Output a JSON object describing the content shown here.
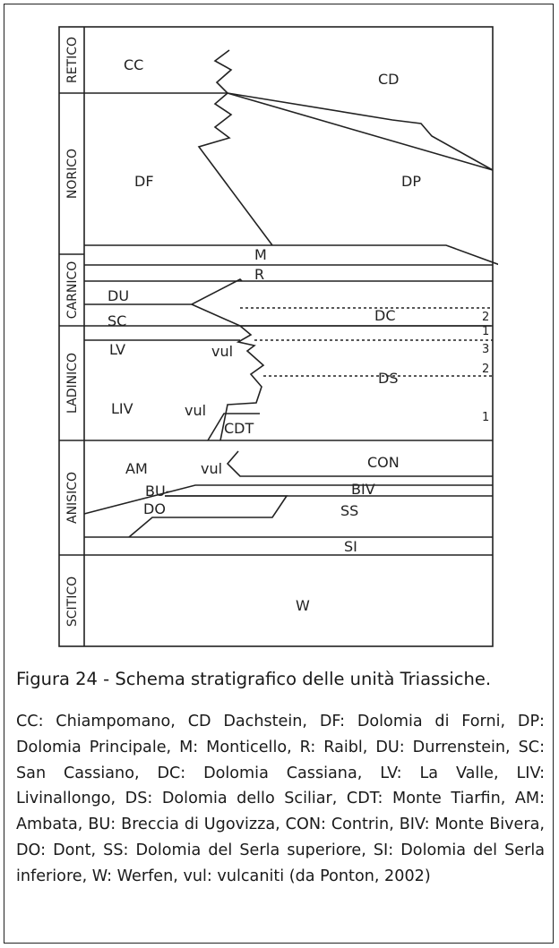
{
  "figure": {
    "stages": [
      "RETICO",
      "NORICO",
      "CARNICO",
      "LADINICO",
      "ANISICO",
      "SCITICO"
    ],
    "units": {
      "cc": "CC",
      "cd": "CD",
      "df": "DF",
      "dp": "DP",
      "m": "M",
      "r": "R",
      "du": "DU",
      "sc": "SC",
      "dc": "DC",
      "lv": "LV",
      "vul1": "vul",
      "liv": "LIV",
      "vul2": "vul",
      "ds": "DS",
      "cdt": "CDT",
      "am": "AM",
      "vul3": "vul",
      "con": "CON",
      "bu": "BU-",
      "biv": "BIV",
      "do": "DO",
      "ss": "SS",
      "si": "SI",
      "w": "W"
    },
    "numbers": {
      "dc_2": "2",
      "dc_1": "1",
      "ds_3": "3",
      "ds_2": "2",
      "ds_1": "1"
    }
  },
  "caption": "Figura 24 - Schema stratigrafico delle unità Triassiche.",
  "legend": "CC: Chiampomano, CD Dachstein, DF: Dolomia di Forni, DP: Dolomia Principale, M: Monticello, R: Raibl, DU: Durrenstein, SC: San Cassiano, DC: Dolomia Cassiana, LV: La Valle, LIV: Livinallongo, DS: Dolomia dello Sciliar, CDT: Monte Tiarfin, AM: Ambata, BU: Breccia di Ugovizza, CON: Contrin, BIV: Monte Bivera, DO: Dont, SS: Dolomia del Serla superiore, SI: Dolomia del Serla inferiore, W: Werfen, vul: vulcaniti (da Ponton, 2002)"
}
